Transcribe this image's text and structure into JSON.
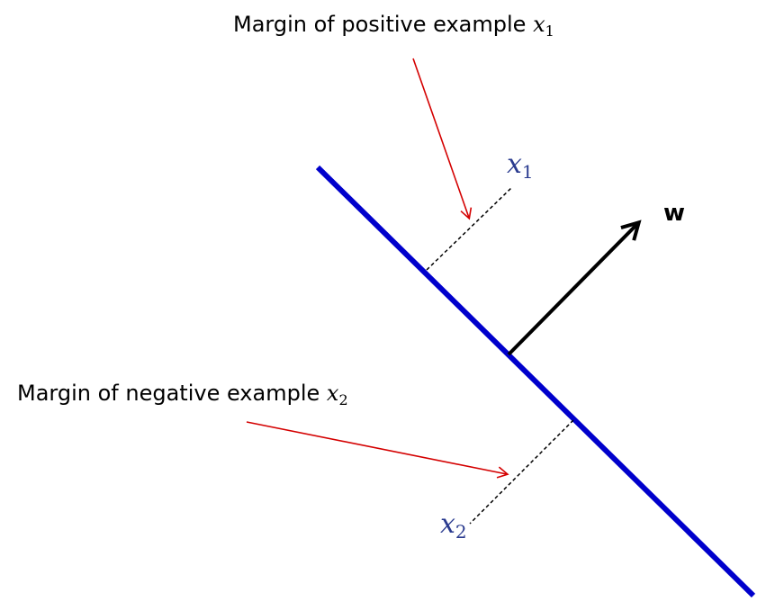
{
  "labels": {
    "positive_margin_text": "Margin of positive example ",
    "positive_margin_var": "x",
    "positive_margin_sub": "1",
    "negative_margin_text": "Margin of negative example ",
    "negative_margin_var": "x",
    "negative_margin_sub": "2",
    "point1_var": "x",
    "point1_sub": "1",
    "point2_var": "x",
    "point2_sub": "2",
    "weight_vector": "w"
  },
  "colors": {
    "hyperplane": "#0000cc",
    "arrow_red": "#d40000",
    "vector": "#000000",
    "point_label": "#2a3b8f",
    "margin_line": "#000000"
  }
}
